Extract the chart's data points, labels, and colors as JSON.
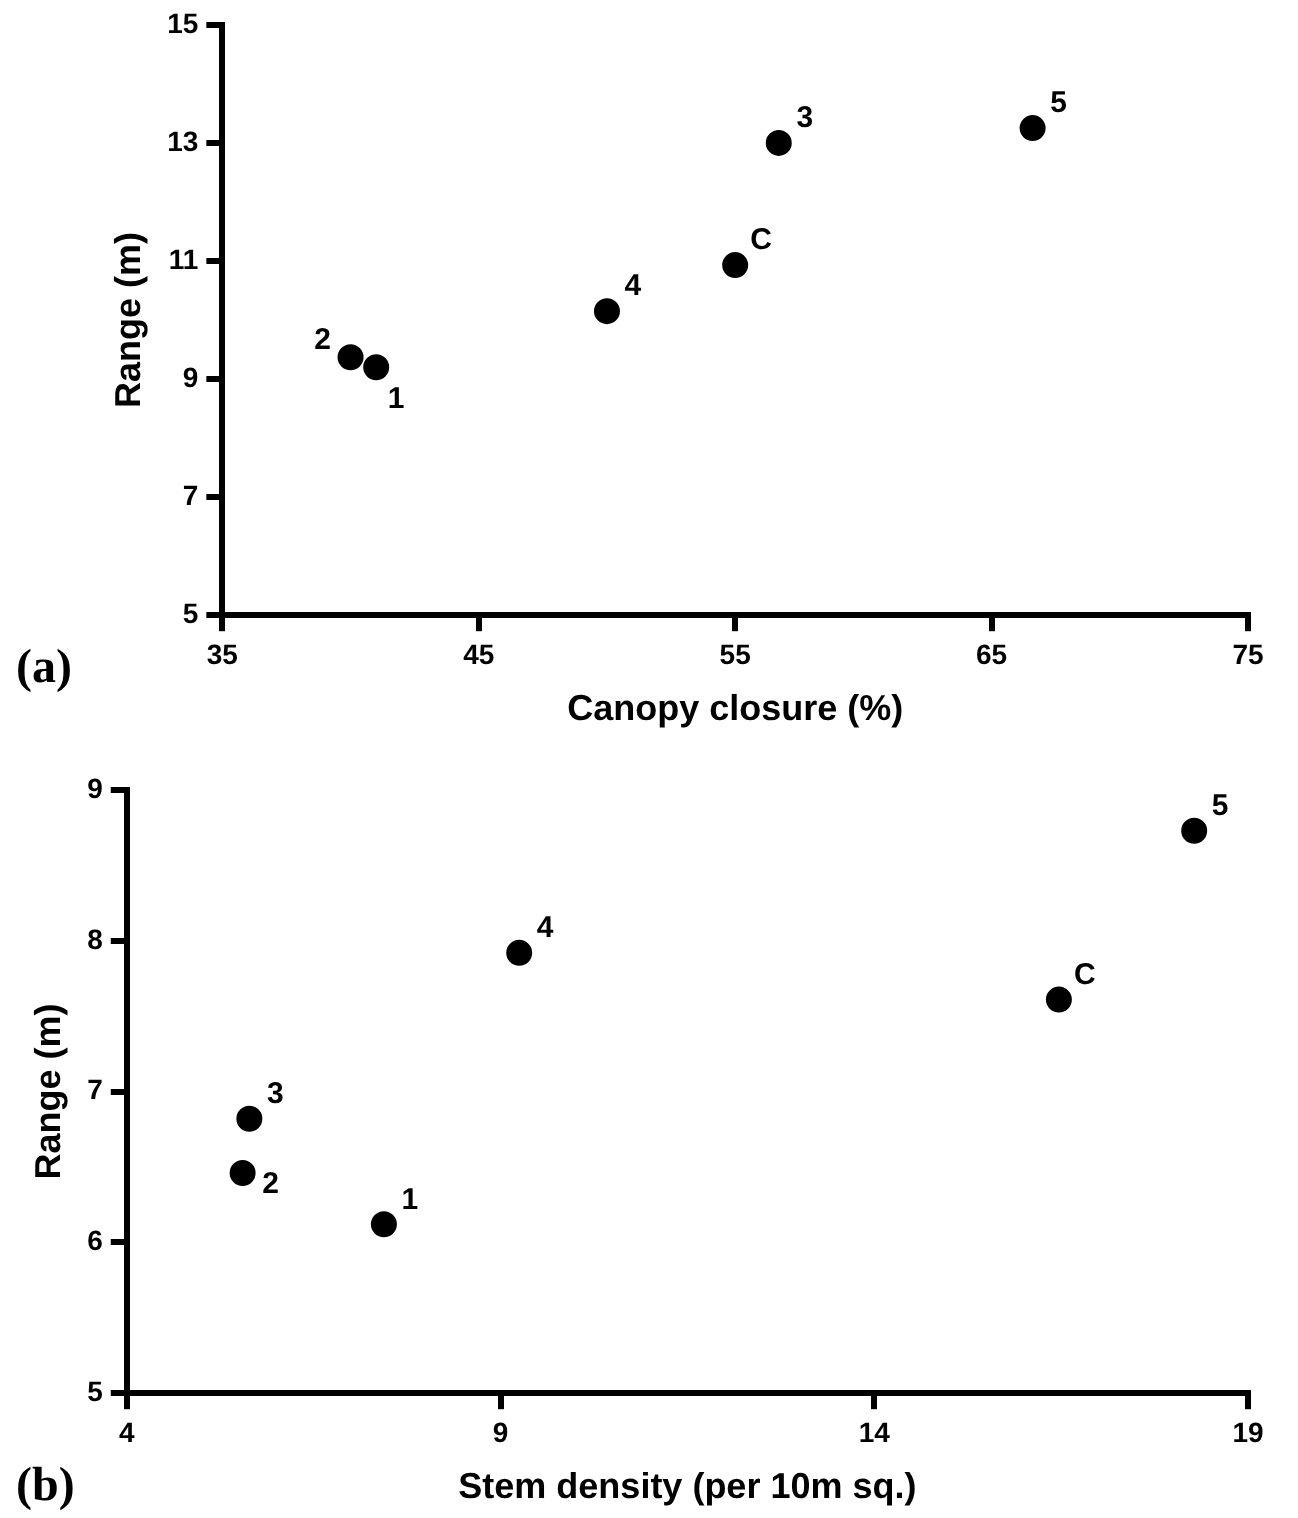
{
  "chart_data": [
    {
      "type": "scatter",
      "xlabel": "Canopy closure (%)",
      "ylabel": "Range (m)",
      "x": [
        41.0,
        40.0,
        56.7,
        50.0,
        66.6,
        55.0
      ],
      "values": [
        9.2,
        9.37,
        13.0,
        10.15,
        13.25,
        10.93
      ],
      "color": "#000000",
      "marker": "circle",
      "xlim": [
        35,
        75
      ],
      "xticks": [
        35,
        45,
        55,
        65,
        75
      ],
      "ylim": [
        5,
        15
      ],
      "yticks": [
        5,
        7,
        9,
        11,
        13,
        15
      ],
      "annotations": [
        "(a)",
        {
          "text": "1",
          "x": 41.0,
          "y": 9.2
        },
        {
          "text": "2",
          "x": 40.0,
          "y": 9.37
        },
        {
          "text": "3",
          "x": 56.7,
          "y": 13.0
        },
        {
          "text": "4",
          "x": 50.0,
          "y": 10.15
        },
        {
          "text": "5",
          "x": 66.6,
          "y": 13.25
        },
        {
          "text": "C",
          "x": 55.0,
          "y": 10.93
        }
      ]
    },
    {
      "type": "scatter",
      "xlabel": "Stem density (per 10m sq.)",
      "ylabel": "Range (m)",
      "x": [
        7.44,
        5.55,
        5.64,
        9.25,
        18.28,
        16.47
      ],
      "values": [
        6.12,
        6.46,
        6.82,
        7.92,
        8.73,
        7.61
      ],
      "color": "#000000",
      "marker": "circle",
      "xlim": [
        4,
        19
      ],
      "xticks": [
        4,
        9,
        14,
        19
      ],
      "ylim": [
        5,
        9
      ],
      "yticks": [
        5,
        6,
        7,
        8,
        9
      ],
      "annotations": [
        "(b)",
        {
          "text": "1",
          "x": 7.44,
          "y": 6.12
        },
        {
          "text": "2",
          "x": 5.55,
          "y": 6.46
        },
        {
          "text": "3",
          "x": 5.64,
          "y": 6.82
        },
        {
          "text": "4",
          "x": 9.25,
          "y": 7.92
        },
        {
          "text": "5",
          "x": 18.28,
          "y": 8.73
        },
        {
          "text": "C",
          "x": 16.47,
          "y": 7.61
        }
      ]
    }
  ]
}
